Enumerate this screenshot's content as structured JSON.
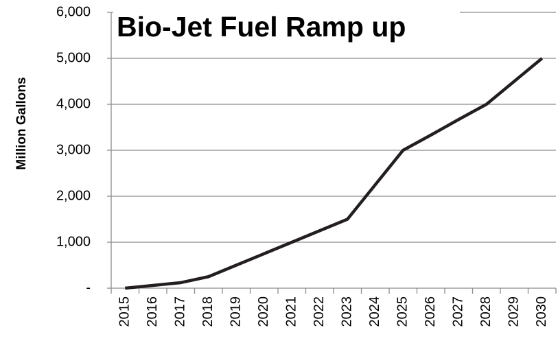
{
  "chart_data": {
    "type": "line",
    "title": "Bio-Jet Fuel Ramp up",
    "y_label": "Million Gallons",
    "categories": [
      "2015",
      "2016",
      "2017",
      "2018",
      "2019",
      "2020",
      "2021",
      "2022",
      "2023",
      "2024",
      "2025",
      "2026",
      "2027",
      "2028",
      "2029",
      "2030"
    ],
    "series": [
      {
        "name": "Bio-Jet Fuel",
        "color": "#231f20",
        "values": [
          0,
          60,
          120,
          250,
          500,
          750,
          1000,
          1250,
          1500,
          2250,
          3000,
          3330,
          3670,
          4000,
          4500,
          5000
        ]
      }
    ],
    "ylim": [
      0,
      6000
    ],
    "yticks": [
      {
        "value": 0,
        "label": "-"
      },
      {
        "value": 1000,
        "label": "1,000"
      },
      {
        "value": 2000,
        "label": "2,000"
      },
      {
        "value": 3000,
        "label": "3,000"
      },
      {
        "value": 4000,
        "label": "4,000"
      },
      {
        "value": 5000,
        "label": "5,000"
      },
      {
        "value": 6000,
        "label": "6,000"
      }
    ],
    "grid": true
  }
}
